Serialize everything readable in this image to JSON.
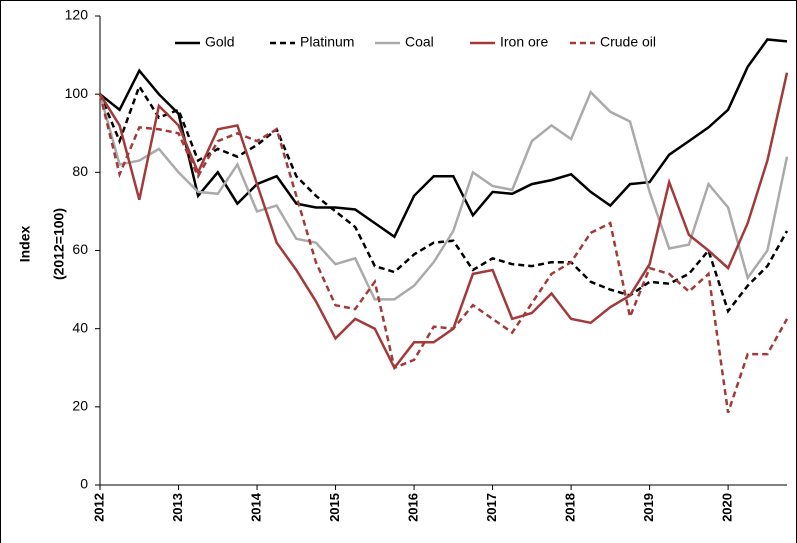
{
  "chart_data": {
    "type": "line",
    "y_label": [
      "Index",
      "(2012=100)"
    ],
    "categories": [
      "2012",
      null,
      null,
      null,
      "2013",
      null,
      null,
      null,
      "2014",
      null,
      null,
      null,
      "2015",
      null,
      null,
      null,
      "2016",
      null,
      null,
      null,
      "2017",
      null,
      null,
      null,
      "2018",
      null,
      null,
      null,
      "2019",
      null,
      null,
      null,
      "2020",
      null,
      null,
      null
    ],
    "ylim": [
      0,
      120
    ],
    "yticks": [
      0,
      20,
      40,
      60,
      80,
      100,
      120
    ],
    "grid": false,
    "legend": "top",
    "series": [
      {
        "name": "Gold",
        "color": "#000000",
        "dash": false,
        "values": [
          100,
          96,
          106,
          100,
          95,
          74,
          80,
          72,
          77,
          79,
          72,
          71,
          71,
          70.5,
          67,
          63.5,
          74,
          79,
          79,
          69,
          75,
          74.5,
          77,
          78,
          79.5,
          75,
          71.5,
          77,
          77.5,
          84.5,
          88,
          91.5,
          96,
          107,
          114,
          113.5
        ]
      },
      {
        "name": "Platinum",
        "color": "#000000",
        "dash": true,
        "values": [
          100,
          88,
          102,
          94,
          96,
          83,
          86,
          84,
          87,
          91,
          79,
          74,
          70,
          66,
          56,
          54.5,
          59,
          62,
          62.5,
          55,
          58,
          56.5,
          56,
          57,
          57,
          52,
          50,
          48.5,
          52,
          51.5,
          54,
          60,
          44.5,
          51,
          56,
          65
        ]
      },
      {
        "name": "Coal",
        "color": "#aaaaaa",
        "dash": false,
        "values": [
          100,
          82,
          83,
          86,
          80,
          75,
          74.5,
          82,
          70,
          71.5,
          63,
          62,
          56.5,
          58,
          47.5,
          47.5,
          51,
          57,
          65,
          80,
          76.5,
          75.5,
          88,
          92,
          88.5,
          100.5,
          95.5,
          93,
          75,
          60.5,
          61.5,
          77,
          71,
          53,
          60,
          84
        ]
      },
      {
        "name": "Iron ore",
        "color": "#a33a3a",
        "dash": false,
        "values": [
          100,
          92,
          73,
          97,
          92,
          80,
          91,
          92,
          77,
          62,
          55,
          47,
          37.5,
          42.5,
          40,
          30,
          36.5,
          36.5,
          40,
          54,
          55,
          42.5,
          44,
          49,
          42.5,
          41.5,
          45.5,
          48.5,
          56.5,
          77.5,
          64,
          60,
          55.5,
          67,
          83,
          105.5
        ]
      },
      {
        "name": "Crude oil",
        "color": "#a33a3a",
        "dash": true,
        "values": [
          100,
          79.5,
          91.5,
          91,
          90,
          79,
          88,
          90,
          88,
          91,
          74,
          57,
          46,
          45,
          52,
          30,
          32,
          40.5,
          40,
          46,
          42.5,
          39,
          46.5,
          54,
          57,
          64.5,
          67,
          43,
          55.5,
          54,
          49.5,
          54,
          18.5,
          33.5,
          33.5,
          42.5
        ]
      }
    ]
  }
}
